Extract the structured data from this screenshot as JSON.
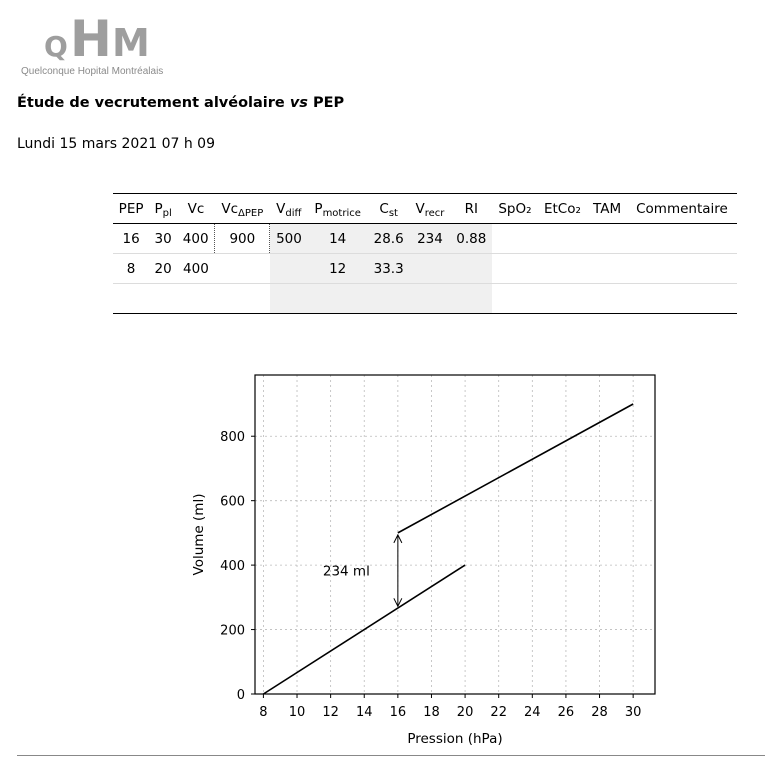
{
  "logo": {
    "letters": [
      "Q",
      "H",
      "M"
    ],
    "subtitle": "Quelconque Hopital Montréalais"
  },
  "report": {
    "title_main": "Étude de vecrutement alvéolaire ",
    "title_vs": "vs",
    "title_end": " PEP",
    "date": "Lundi 15 mars 2021 07 h 09"
  },
  "table": {
    "headers": [
      {
        "main": "PEP",
        "sub": ""
      },
      {
        "main": "P",
        "sub": "pl"
      },
      {
        "main": "Vc",
        "sub": ""
      },
      {
        "main": "Vc",
        "sub": "ΔPEP"
      },
      {
        "main": "V",
        "sub": "diff"
      },
      {
        "main": "P",
        "sub": "motrice"
      },
      {
        "main": "C",
        "sub": "st"
      },
      {
        "main": "V",
        "sub": "recr"
      },
      {
        "main": "RI",
        "sub": ""
      },
      {
        "main": "SpO₂",
        "sub": ""
      },
      {
        "main": "EtCo₂",
        "sub": ""
      },
      {
        "main": "TAM",
        "sub": ""
      },
      {
        "main": "Commentaire",
        "sub": ""
      }
    ],
    "rows": [
      [
        "16",
        "30",
        "400",
        "900",
        "500",
        "14",
        "28.6",
        "234",
        "0.88",
        "",
        "",
        "",
        ""
      ],
      [
        "8",
        "20",
        "400",
        "",
        "",
        "12",
        "33.3",
        "",
        "",
        "",
        "",
        "",
        ""
      ],
      [
        "",
        "",
        "",
        "",
        "",
        "",
        "",
        "",
        "",
        "",
        "",
        "",
        ""
      ]
    ]
  },
  "chart_data": {
    "type": "line",
    "xlabel": "Pression (hPa)",
    "ylabel": "Volume (ml)",
    "xlim": [
      7.5,
      31.3
    ],
    "ylim": [
      0,
      990
    ],
    "xticks": [
      8,
      10,
      12,
      14,
      16,
      18,
      20,
      22,
      24,
      26,
      28,
      30
    ],
    "yticks": [
      0,
      200,
      400,
      600,
      800
    ],
    "grid": true,
    "series": [
      {
        "x": [
          8,
          20
        ],
        "y": [
          0,
          400
        ]
      },
      {
        "x": [
          16,
          30
        ],
        "y": [
          500,
          900
        ]
      }
    ],
    "annotation": {
      "text": "234 ml",
      "x": 16,
      "y_from": 266,
      "y_to": 500
    }
  }
}
